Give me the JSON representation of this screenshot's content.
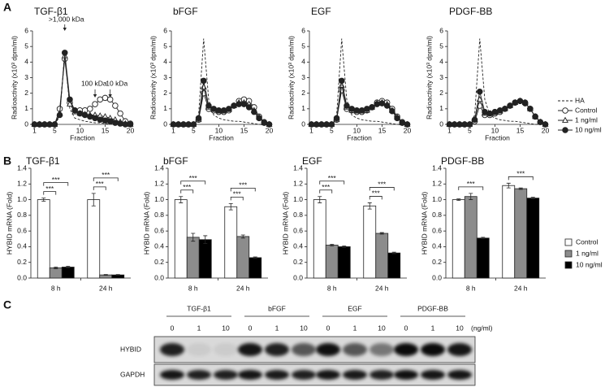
{
  "panel_labels": [
    "A",
    "B",
    "C"
  ],
  "chart_data": [
    {
      "type": "line",
      "title": "TGF-β1",
      "x_label": "Fraction",
      "y_label": "Radioactivity (x10³ dpm/ml)",
      "x": [
        1,
        2,
        3,
        4,
        5,
        6,
        7,
        8,
        9,
        10,
        11,
        12,
        13,
        14,
        15,
        16,
        17,
        18,
        19,
        20
      ],
      "xlim": [
        0.6,
        20.4
      ],
      "xticks": [
        1,
        5,
        10,
        15,
        20
      ],
      "ylim": [
        0,
        6
      ],
      "yticks": [
        0,
        1,
        2,
        3,
        4,
        5,
        6
      ],
      "annotations": [
        ">1,000 kDa",
        "100 kDa",
        "10 kDa"
      ],
      "series": [
        {
          "name": "HA",
          "color": "#222",
          "marker": "none",
          "dash": true,
          "values": [
            0,
            0,
            0,
            0,
            0,
            0.5,
            4.7,
            1.0,
            0.4,
            0.3,
            0.2,
            0.15,
            0.1,
            0.1,
            0.05,
            0.05,
            0,
            0,
            0,
            0
          ]
        },
        {
          "name": "Control",
          "color": "#222",
          "marker": "open-circle",
          "values": [
            0,
            0,
            0,
            0,
            0,
            1.0,
            4.2,
            1.4,
            0.9,
            0.9,
            0.9,
            1.0,
            1.3,
            1.6,
            1.7,
            1.6,
            1.2,
            0.7,
            0.2,
            0.05
          ]
        },
        {
          "name": "1 ng/ml",
          "color": "#222",
          "marker": "triangle",
          "values": [
            0,
            0,
            0,
            0,
            0,
            0.7,
            4.4,
            1.3,
            0.8,
            0.7,
            0.65,
            0.6,
            0.6,
            0.55,
            0.5,
            0.4,
            0.3,
            0.15,
            0.05,
            0
          ]
        },
        {
          "name": "10 ng/ml",
          "color": "#222",
          "marker": "filled-circle",
          "values": [
            0,
            0,
            0,
            0,
            0,
            0.6,
            4.6,
            1.6,
            0.9,
            0.7,
            0.6,
            0.5,
            0.4,
            0.3,
            0.25,
            0.2,
            0.1,
            0.05,
            0,
            0
          ]
        }
      ]
    },
    {
      "type": "line",
      "title": "bFGF",
      "x_label": "Fraction",
      "y_label": "Radioactivity (x10³ dpm/ml)",
      "x": [
        1,
        2,
        3,
        4,
        5,
        6,
        7,
        8,
        9,
        10,
        11,
        12,
        13,
        14,
        15,
        16,
        17,
        18,
        19,
        20
      ],
      "xlim": [
        0.6,
        20.4
      ],
      "xticks": [
        1,
        5,
        10,
        15,
        20
      ],
      "ylim": [
        0,
        6
      ],
      "yticks": [
        0,
        1,
        2,
        3,
        4,
        5,
        6
      ],
      "series": [
        {
          "name": "HA",
          "color": "#222",
          "marker": "none",
          "dash": true,
          "values": [
            0,
            0,
            0,
            0,
            0,
            0.6,
            5.5,
            1.6,
            0.6,
            0.4,
            0.3,
            0.25,
            0.2,
            0.2,
            0.15,
            0.1,
            0.05,
            0,
            0,
            0
          ]
        },
        {
          "name": "Control",
          "color": "#222",
          "marker": "open-circle",
          "values": [
            0,
            0,
            0,
            0,
            0,
            0.3,
            2.0,
            1.0,
            0.9,
            0.8,
            0.8,
            0.9,
            1.2,
            1.5,
            1.6,
            1.5,
            1.1,
            0.5,
            0.15,
            0
          ]
        },
        {
          "name": "1 ng/ml",
          "color": "#222",
          "marker": "triangle",
          "values": [
            0,
            0,
            0,
            0,
            0,
            0.3,
            2.4,
            1.1,
            0.95,
            0.85,
            0.85,
            0.95,
            1.2,
            1.4,
            1.4,
            1.3,
            0.9,
            0.45,
            0.1,
            0
          ]
        },
        {
          "name": "10 ng/ml",
          "color": "#222",
          "marker": "filled-circle",
          "values": [
            0,
            0,
            0,
            0,
            0,
            0.4,
            2.8,
            1.2,
            1.0,
            0.9,
            0.9,
            1.0,
            1.2,
            1.3,
            1.3,
            1.1,
            0.8,
            0.4,
            0.1,
            0
          ]
        }
      ]
    },
    {
      "type": "line",
      "title": "EGF",
      "x_label": "Fraction",
      "y_label": "Radioactivity (x10³ dpm/ml)",
      "x": [
        1,
        2,
        3,
        4,
        5,
        6,
        7,
        8,
        9,
        10,
        11,
        12,
        13,
        14,
        15,
        16,
        17,
        18,
        19,
        20
      ],
      "xlim": [
        0.6,
        20.4
      ],
      "xticks": [
        1,
        5,
        10,
        15,
        20
      ],
      "ylim": [
        0,
        6
      ],
      "yticks": [
        0,
        1,
        2,
        3,
        4,
        5,
        6
      ],
      "series": [
        {
          "name": "HA",
          "color": "#222",
          "marker": "none",
          "dash": true,
          "values": [
            0,
            0,
            0,
            0,
            0,
            0.6,
            5.5,
            1.6,
            0.6,
            0.4,
            0.3,
            0.25,
            0.2,
            0.2,
            0.15,
            0.1,
            0.05,
            0,
            0,
            0
          ]
        },
        {
          "name": "Control",
          "color": "#222",
          "marker": "open-circle",
          "values": [
            0,
            0,
            0,
            0,
            0,
            0.3,
            2.2,
            1.0,
            0.9,
            0.8,
            0.8,
            0.9,
            1.1,
            1.4,
            1.5,
            1.4,
            1.0,
            0.5,
            0.15,
            0
          ]
        },
        {
          "name": "1 ng/ml",
          "color": "#222",
          "marker": "triangle",
          "values": [
            0,
            0,
            0,
            0,
            0,
            0.3,
            2.5,
            1.1,
            0.9,
            0.85,
            0.85,
            0.9,
            1.1,
            1.35,
            1.4,
            1.3,
            0.9,
            0.45,
            0.1,
            0
          ]
        },
        {
          "name": "10 ng/ml",
          "color": "#222",
          "marker": "filled-circle",
          "values": [
            0,
            0,
            0,
            0,
            0,
            0.4,
            2.8,
            1.2,
            1.0,
            0.9,
            0.9,
            1.0,
            1.1,
            1.3,
            1.35,
            1.2,
            0.85,
            0.4,
            0.1,
            0
          ]
        }
      ]
    },
    {
      "type": "line",
      "title": "PDGF-BB",
      "x_label": "Fraction",
      "y_label": "Radioactivity (x10³ dpm/ml)",
      "x": [
        1,
        2,
        3,
        4,
        5,
        6,
        7,
        8,
        9,
        10,
        11,
        12,
        13,
        14,
        15,
        16,
        17,
        18,
        19,
        20
      ],
      "xlim": [
        0.6,
        20.4
      ],
      "xticks": [
        1,
        5,
        10,
        15,
        20
      ],
      "ylim": [
        0,
        6
      ],
      "yticks": [
        0,
        1,
        2,
        3,
        4,
        5,
        6
      ],
      "legend": "right",
      "series": [
        {
          "name": "HA",
          "color": "#222",
          "marker": "none",
          "dash": true,
          "values": [
            0,
            0,
            0,
            0,
            0,
            0.6,
            5.5,
            1.6,
            0.6,
            0.4,
            0.3,
            0.25,
            0.2,
            0.2,
            0.15,
            0.1,
            0.05,
            0,
            0,
            0
          ]
        },
        {
          "name": "Control",
          "color": "#222",
          "marker": "open-circle",
          "values": [
            0,
            0,
            0,
            0,
            0,
            0.2,
            1.2,
            0.6,
            0.6,
            0.7,
            0.8,
            1.0,
            1.2,
            1.4,
            1.5,
            1.4,
            1.0,
            0.5,
            0.15,
            0
          ]
        },
        {
          "name": "1 ng/ml",
          "color": "#222",
          "marker": "triangle",
          "values": [
            0,
            0,
            0,
            0,
            0,
            0.3,
            1.6,
            0.7,
            0.7,
            0.75,
            0.85,
            1.0,
            1.2,
            1.4,
            1.5,
            1.4,
            1.0,
            0.5,
            0.15,
            0
          ]
        },
        {
          "name": "10 ng/ml",
          "color": "#222",
          "marker": "filled-circle",
          "values": [
            0,
            0,
            0,
            0,
            0,
            0.3,
            2.1,
            0.8,
            0.7,
            0.8,
            0.9,
            1.0,
            1.2,
            1.4,
            1.5,
            1.35,
            1.0,
            0.5,
            0.15,
            0
          ]
        }
      ]
    },
    {
      "type": "bar",
      "title": "TGF-β1",
      "y_label": "HYBID mRNA (Fold)",
      "categories": [
        "8 h",
        "24 h"
      ],
      "ylim": [
        0,
        1.4
      ],
      "yticks": [
        {
          "value": 0,
          "label": "0.0"
        },
        0.2,
        0.4,
        0.6,
        0.8,
        {
          "value": 1,
          "label": "1.0"
        },
        1.2,
        1.4
      ],
      "series": [
        {
          "name": "Control",
          "color": "#ffffff",
          "values": [
            1.0,
            1.0
          ],
          "errors": [
            0.02,
            0.08
          ]
        },
        {
          "name": "1 ng/ml",
          "color": "#8c8c8c",
          "values": [
            0.13,
            0.04
          ],
          "errors": [
            0.01,
            0.005
          ]
        },
        {
          "name": "10 ng/ml",
          "color": "#000000",
          "values": [
            0.14,
            0.04
          ],
          "errors": [
            0.01,
            0.005
          ]
        }
      ],
      "significance": [
        {
          "category": "8 h",
          "vs": "1 ng/ml",
          "label": "***"
        },
        {
          "category": "8 h",
          "vs": "10 ng/ml",
          "label": "***"
        },
        {
          "category": "24 h",
          "vs": "1 ng/ml",
          "label": "***"
        },
        {
          "category": "24 h",
          "vs": "10 ng/ml",
          "label": "***"
        }
      ]
    },
    {
      "type": "bar",
      "title": "bFGF",
      "y_label": "HYBID mRNA (Fold)",
      "categories": [
        "8 h",
        "24 h"
      ],
      "ylim": [
        0,
        1.4
      ],
      "yticks": [
        {
          "value": 0,
          "label": "0.0"
        },
        0.2,
        0.4,
        0.6,
        0.8,
        {
          "value": 1,
          "label": "1.0"
        },
        1.2,
        1.4
      ],
      "series": [
        {
          "name": "Control",
          "color": "#ffffff",
          "values": [
            1.0,
            0.91
          ],
          "errors": [
            0.04,
            0.04
          ]
        },
        {
          "name": "1 ng/ml",
          "color": "#8c8c8c",
          "values": [
            0.52,
            0.53
          ],
          "errors": [
            0.05,
            0.02
          ]
        },
        {
          "name": "10 ng/ml",
          "color": "#000000",
          "values": [
            0.49,
            0.26
          ],
          "errors": [
            0.05,
            0.01
          ]
        }
      ],
      "significance": [
        {
          "category": "8 h",
          "vs": "1 ng/ml",
          "label": "***"
        },
        {
          "category": "8 h",
          "vs": "10 ng/ml",
          "label": "***"
        },
        {
          "category": "24 h",
          "vs": "1 ng/ml",
          "label": "***"
        },
        {
          "category": "24 h",
          "vs": "10 ng/ml",
          "label": "***"
        }
      ]
    },
    {
      "type": "bar",
      "title": "EGF",
      "y_label": "HYBID mRNA (Fold)",
      "categories": [
        "8 h",
        "24 h"
      ],
      "ylim": [
        0,
        1.4
      ],
      "yticks": [
        {
          "value": 0,
          "label": "0.0"
        },
        0.2,
        0.4,
        0.6,
        0.8,
        {
          "value": 1,
          "label": "1.0"
        },
        1.2,
        1.4
      ],
      "series": [
        {
          "name": "Control",
          "color": "#ffffff",
          "values": [
            1.0,
            0.92
          ],
          "errors": [
            0.04,
            0.04
          ]
        },
        {
          "name": "1 ng/ml",
          "color": "#8c8c8c",
          "values": [
            0.42,
            0.57
          ],
          "errors": [
            0.01,
            0.01
          ]
        },
        {
          "name": "10 ng/ml",
          "color": "#000000",
          "values": [
            0.4,
            0.32
          ],
          "errors": [
            0.01,
            0.01
          ]
        }
      ],
      "significance": [
        {
          "category": "8 h",
          "vs": "1 ng/ml",
          "label": "***"
        },
        {
          "category": "8 h",
          "vs": "10 ng/ml",
          "label": "***"
        },
        {
          "category": "24 h",
          "vs": "1 ng/ml",
          "label": "***"
        },
        {
          "category": "24 h",
          "vs": "10 ng/ml",
          "label": "***"
        }
      ]
    },
    {
      "type": "bar",
      "title": "PDGF-BB",
      "y_label": "HYBID mRNA (Fold)",
      "categories": [
        "8 h",
        "24 h"
      ],
      "legend": "right",
      "ylim": [
        0,
        1.4
      ],
      "yticks": [
        {
          "value": 0,
          "label": "0.0"
        },
        0.2,
        0.4,
        0.6,
        0.8,
        {
          "value": 1,
          "label": "1.0"
        },
        1.2,
        1.4
      ],
      "series": [
        {
          "name": "Control",
          "color": "#ffffff",
          "values": [
            1.0,
            1.18
          ],
          "errors": [
            0.01,
            0.03
          ]
        },
        {
          "name": "1 ng/ml",
          "color": "#8c8c8c",
          "values": [
            1.04,
            1.14
          ],
          "errors": [
            0.04,
            0.01
          ]
        },
        {
          "name": "10 ng/ml",
          "color": "#000000",
          "values": [
            0.51,
            1.02
          ],
          "errors": [
            0.01,
            0.01
          ]
        }
      ],
      "significance": [
        {
          "category": "8 h",
          "vs": "10 ng/ml",
          "label": "***"
        },
        {
          "category": "24 h",
          "vs": "10 ng/ml",
          "label": "***"
        }
      ]
    }
  ],
  "blot": {
    "groups": [
      "TGF-β1",
      "bFGF",
      "EGF",
      "PDGF-BB"
    ],
    "lanes": [
      "0",
      "1",
      "10",
      "0",
      "1",
      "10",
      "0",
      "1",
      "10",
      "0",
      "1",
      "10"
    ],
    "unit": "(ng/ml)",
    "rows": [
      "HYBID",
      "GAPDH"
    ]
  }
}
